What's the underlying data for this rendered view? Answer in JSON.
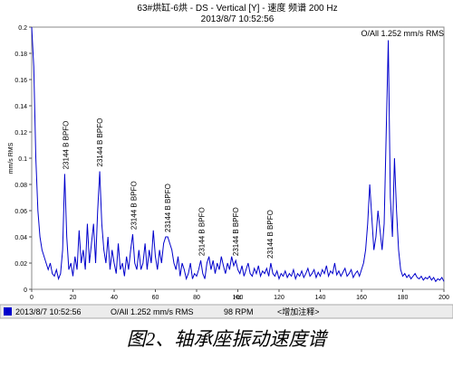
{
  "chart_data": {
    "type": "line",
    "title": "63#烘缸-6烘 - DS - Vertical [Y] - 速度 频谱 200 Hz",
    "subtitle": "2013/8/7 10:52:56",
    "y_label": "mm/s RMS",
    "x_label": "Hz",
    "overall_note": "O/All 1.252 mm/s RMS",
    "xlim": [
      0,
      200
    ],
    "xticks": [
      0,
      20,
      40,
      60,
      80,
      100,
      120,
      140,
      160,
      180,
      200
    ],
    "ylim": [
      0,
      0.2
    ],
    "yticks": [
      0,
      0.02,
      0.04,
      0.06,
      0.08,
      0.1,
      0.12,
      0.14,
      0.16,
      0.18,
      0.2
    ],
    "x": [
      0,
      1,
      2,
      3,
      4,
      5,
      6,
      7,
      8,
      9,
      10,
      11,
      12,
      13,
      14,
      15,
      16,
      17,
      18,
      19,
      20,
      21,
      22,
      23,
      24,
      25,
      26,
      27,
      28,
      29,
      30,
      31,
      32,
      33,
      34,
      35,
      36,
      37,
      38,
      39,
      40,
      41,
      42,
      43,
      44,
      45,
      46,
      47,
      48,
      49,
      50,
      51,
      52,
      53,
      54,
      55,
      56,
      57,
      58,
      59,
      60,
      61,
      62,
      63,
      64,
      65,
      66,
      67,
      68,
      69,
      70,
      71,
      72,
      73,
      74,
      75,
      76,
      77,
      78,
      79,
      80,
      81,
      82,
      83,
      84,
      85,
      86,
      87,
      88,
      89,
      90,
      91,
      92,
      93,
      94,
      95,
      96,
      97,
      98,
      99,
      100,
      101,
      102,
      103,
      104,
      105,
      106,
      107,
      108,
      109,
      110,
      111,
      112,
      113,
      114,
      115,
      116,
      117,
      118,
      119,
      120,
      121,
      122,
      123,
      124,
      125,
      126,
      127,
      128,
      129,
      130,
      131,
      132,
      133,
      134,
      135,
      136,
      137,
      138,
      139,
      140,
      141,
      142,
      143,
      144,
      145,
      146,
      147,
      148,
      149,
      150,
      151,
      152,
      153,
      154,
      155,
      156,
      157,
      158,
      159,
      160,
      161,
      162,
      163,
      164,
      165,
      166,
      167,
      168,
      169,
      170,
      171,
      172,
      173,
      174,
      175,
      176,
      177,
      178,
      179,
      180,
      181,
      182,
      183,
      184,
      185,
      186,
      187,
      188,
      189,
      190,
      191,
      192,
      193,
      194,
      195,
      196,
      197,
      198,
      199,
      200
    ],
    "series": [
      {
        "name": "2013/8/7 10:52:56",
        "color": "#0000cc",
        "values": [
          0.2,
          0.17,
          0.1,
          0.06,
          0.04,
          0.03,
          0.025,
          0.02,
          0.015,
          0.02,
          0.012,
          0.01,
          0.015,
          0.008,
          0.012,
          0.03,
          0.088,
          0.04,
          0.015,
          0.02,
          0.01,
          0.025,
          0.015,
          0.045,
          0.02,
          0.03,
          0.015,
          0.05,
          0.02,
          0.035,
          0.05,
          0.02,
          0.06,
          0.09,
          0.05,
          0.03,
          0.02,
          0.04,
          0.015,
          0.03,
          0.02,
          0.012,
          0.035,
          0.015,
          0.02,
          0.01,
          0.025,
          0.015,
          0.03,
          0.042,
          0.02,
          0.015,
          0.03,
          0.015,
          0.02,
          0.035,
          0.015,
          0.03,
          0.02,
          0.045,
          0.025,
          0.015,
          0.03,
          0.02,
          0.035,
          0.04,
          0.04,
          0.035,
          0.03,
          0.02,
          0.015,
          0.025,
          0.01,
          0.02,
          0.015,
          0.008,
          0.012,
          0.02,
          0.008,
          0.012,
          0.01,
          0.015,
          0.022,
          0.012,
          0.008,
          0.02,
          0.025,
          0.015,
          0.022,
          0.012,
          0.02,
          0.015,
          0.025,
          0.018,
          0.012,
          0.02,
          0.015,
          0.025,
          0.018,
          0.022,
          0.015,
          0.012,
          0.018,
          0.01,
          0.015,
          0.02,
          0.012,
          0.01,
          0.016,
          0.012,
          0.018,
          0.01,
          0.014,
          0.012,
          0.016,
          0.01,
          0.02,
          0.012,
          0.01,
          0.014,
          0.008,
          0.012,
          0.01,
          0.014,
          0.009,
          0.012,
          0.01,
          0.015,
          0.008,
          0.012,
          0.01,
          0.014,
          0.009,
          0.012,
          0.016,
          0.01,
          0.012,
          0.015,
          0.009,
          0.013,
          0.01,
          0.015,
          0.012,
          0.018,
          0.01,
          0.014,
          0.012,
          0.02,
          0.011,
          0.014,
          0.01,
          0.013,
          0.016,
          0.01,
          0.012,
          0.015,
          0.009,
          0.012,
          0.014,
          0.01,
          0.015,
          0.02,
          0.03,
          0.05,
          0.08,
          0.055,
          0.03,
          0.04,
          0.06,
          0.045,
          0.03,
          0.05,
          0.12,
          0.19,
          0.07,
          0.04,
          0.1,
          0.06,
          0.03,
          0.015,
          0.01,
          0.012,
          0.009,
          0.011,
          0.008,
          0.01,
          0.012,
          0.009,
          0.008,
          0.01,
          0.007,
          0.009,
          0.008,
          0.01,
          0.007,
          0.009,
          0.006,
          0.008,
          0.007,
          0.009,
          0.006
        ]
      }
    ],
    "annotations": [
      {
        "text": "23144 B BPFO",
        "x": 16.5
      },
      {
        "text": "23144 B BPFO",
        "x": 33
      },
      {
        "text": "23144 B BPFO",
        "x": 49.5
      },
      {
        "text": "23144 B BPFO",
        "x": 66
      },
      {
        "text": "23144 B BPFO",
        "x": 82.5
      },
      {
        "text": "23144 B BPFO",
        "x": 99
      },
      {
        "text": "23144 B BPFO",
        "x": 115.5
      }
    ],
    "footer": {
      "overall": "O/All 1.252 mm/s RMS",
      "rpm": "98 RPM",
      "note": "<增加注释>"
    }
  },
  "caption": "图2、轴承座振动速度谱"
}
